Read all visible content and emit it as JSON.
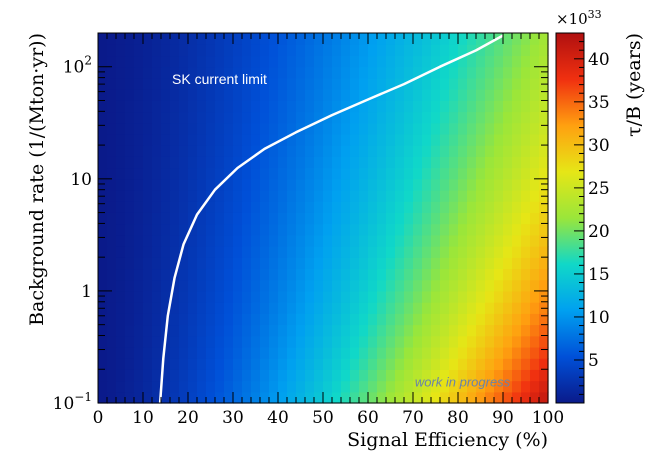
{
  "chart_data": {
    "type": "heatmap",
    "title": "",
    "xlabel": "Signal Efficiency (%)",
    "ylabel": "Background rate (1/(Mton·yr))",
    "xlim": [
      0,
      100
    ],
    "ylim": [
      0.1,
      200
    ],
    "y_scale": "log",
    "x_ticks": [
      "0",
      "10",
      "20",
      "30",
      "40",
      "50",
      "60",
      "70",
      "80",
      "90",
      "100"
    ],
    "y_ticks": [
      {
        "value": 0.1,
        "base": "10",
        "exp": "−1"
      },
      {
        "value": 1,
        "label": "1"
      },
      {
        "value": 10,
        "label": "10"
      },
      {
        "value": 100,
        "base": "10",
        "exp": "2"
      }
    ],
    "colorbar": {
      "label": "τ/B (years)",
      "multiplier_base": "×10",
      "multiplier_exp": "33",
      "range": [
        0,
        43
      ],
      "ticks": [
        "5",
        "10",
        "15",
        "20",
        "25",
        "30",
        "35",
        "40"
      ],
      "colors": [
        "#0a1a8a",
        "#0050d8",
        "#00a0f0",
        "#10d8c8",
        "#9ae63a",
        "#e6e616",
        "#ffa010",
        "#f03010",
        "#b01010"
      ]
    },
    "heatmap_model": {
      "grid": {
        "x_bins": 50,
        "y_bins": 33
      },
      "tau_over_B_max": 42,
      "efficiency_exponent": 1.5,
      "log_background_coefficient": 0.27
    },
    "curves": [
      {
        "name": "SK current limit",
        "color": "#ffffff",
        "x": [
          13.8,
          14.5,
          15.5,
          17,
          19,
          22,
          26,
          31,
          37,
          44,
          52,
          60,
          68,
          76,
          84,
          90
        ],
        "y": [
          0.1,
          0.25,
          0.6,
          1.3,
          2.6,
          4.8,
          8,
          12.5,
          18.5,
          26,
          37,
          51,
          70,
          100,
          140,
          190
        ]
      }
    ],
    "annotations": [
      {
        "text": "SK current limit",
        "x": 27,
        "y": 70,
        "color": "#ffffff"
      },
      {
        "text": "work in progress",
        "x": 81,
        "y": 0.14,
        "color": "#6a84a8",
        "style": "italic"
      }
    ]
  }
}
